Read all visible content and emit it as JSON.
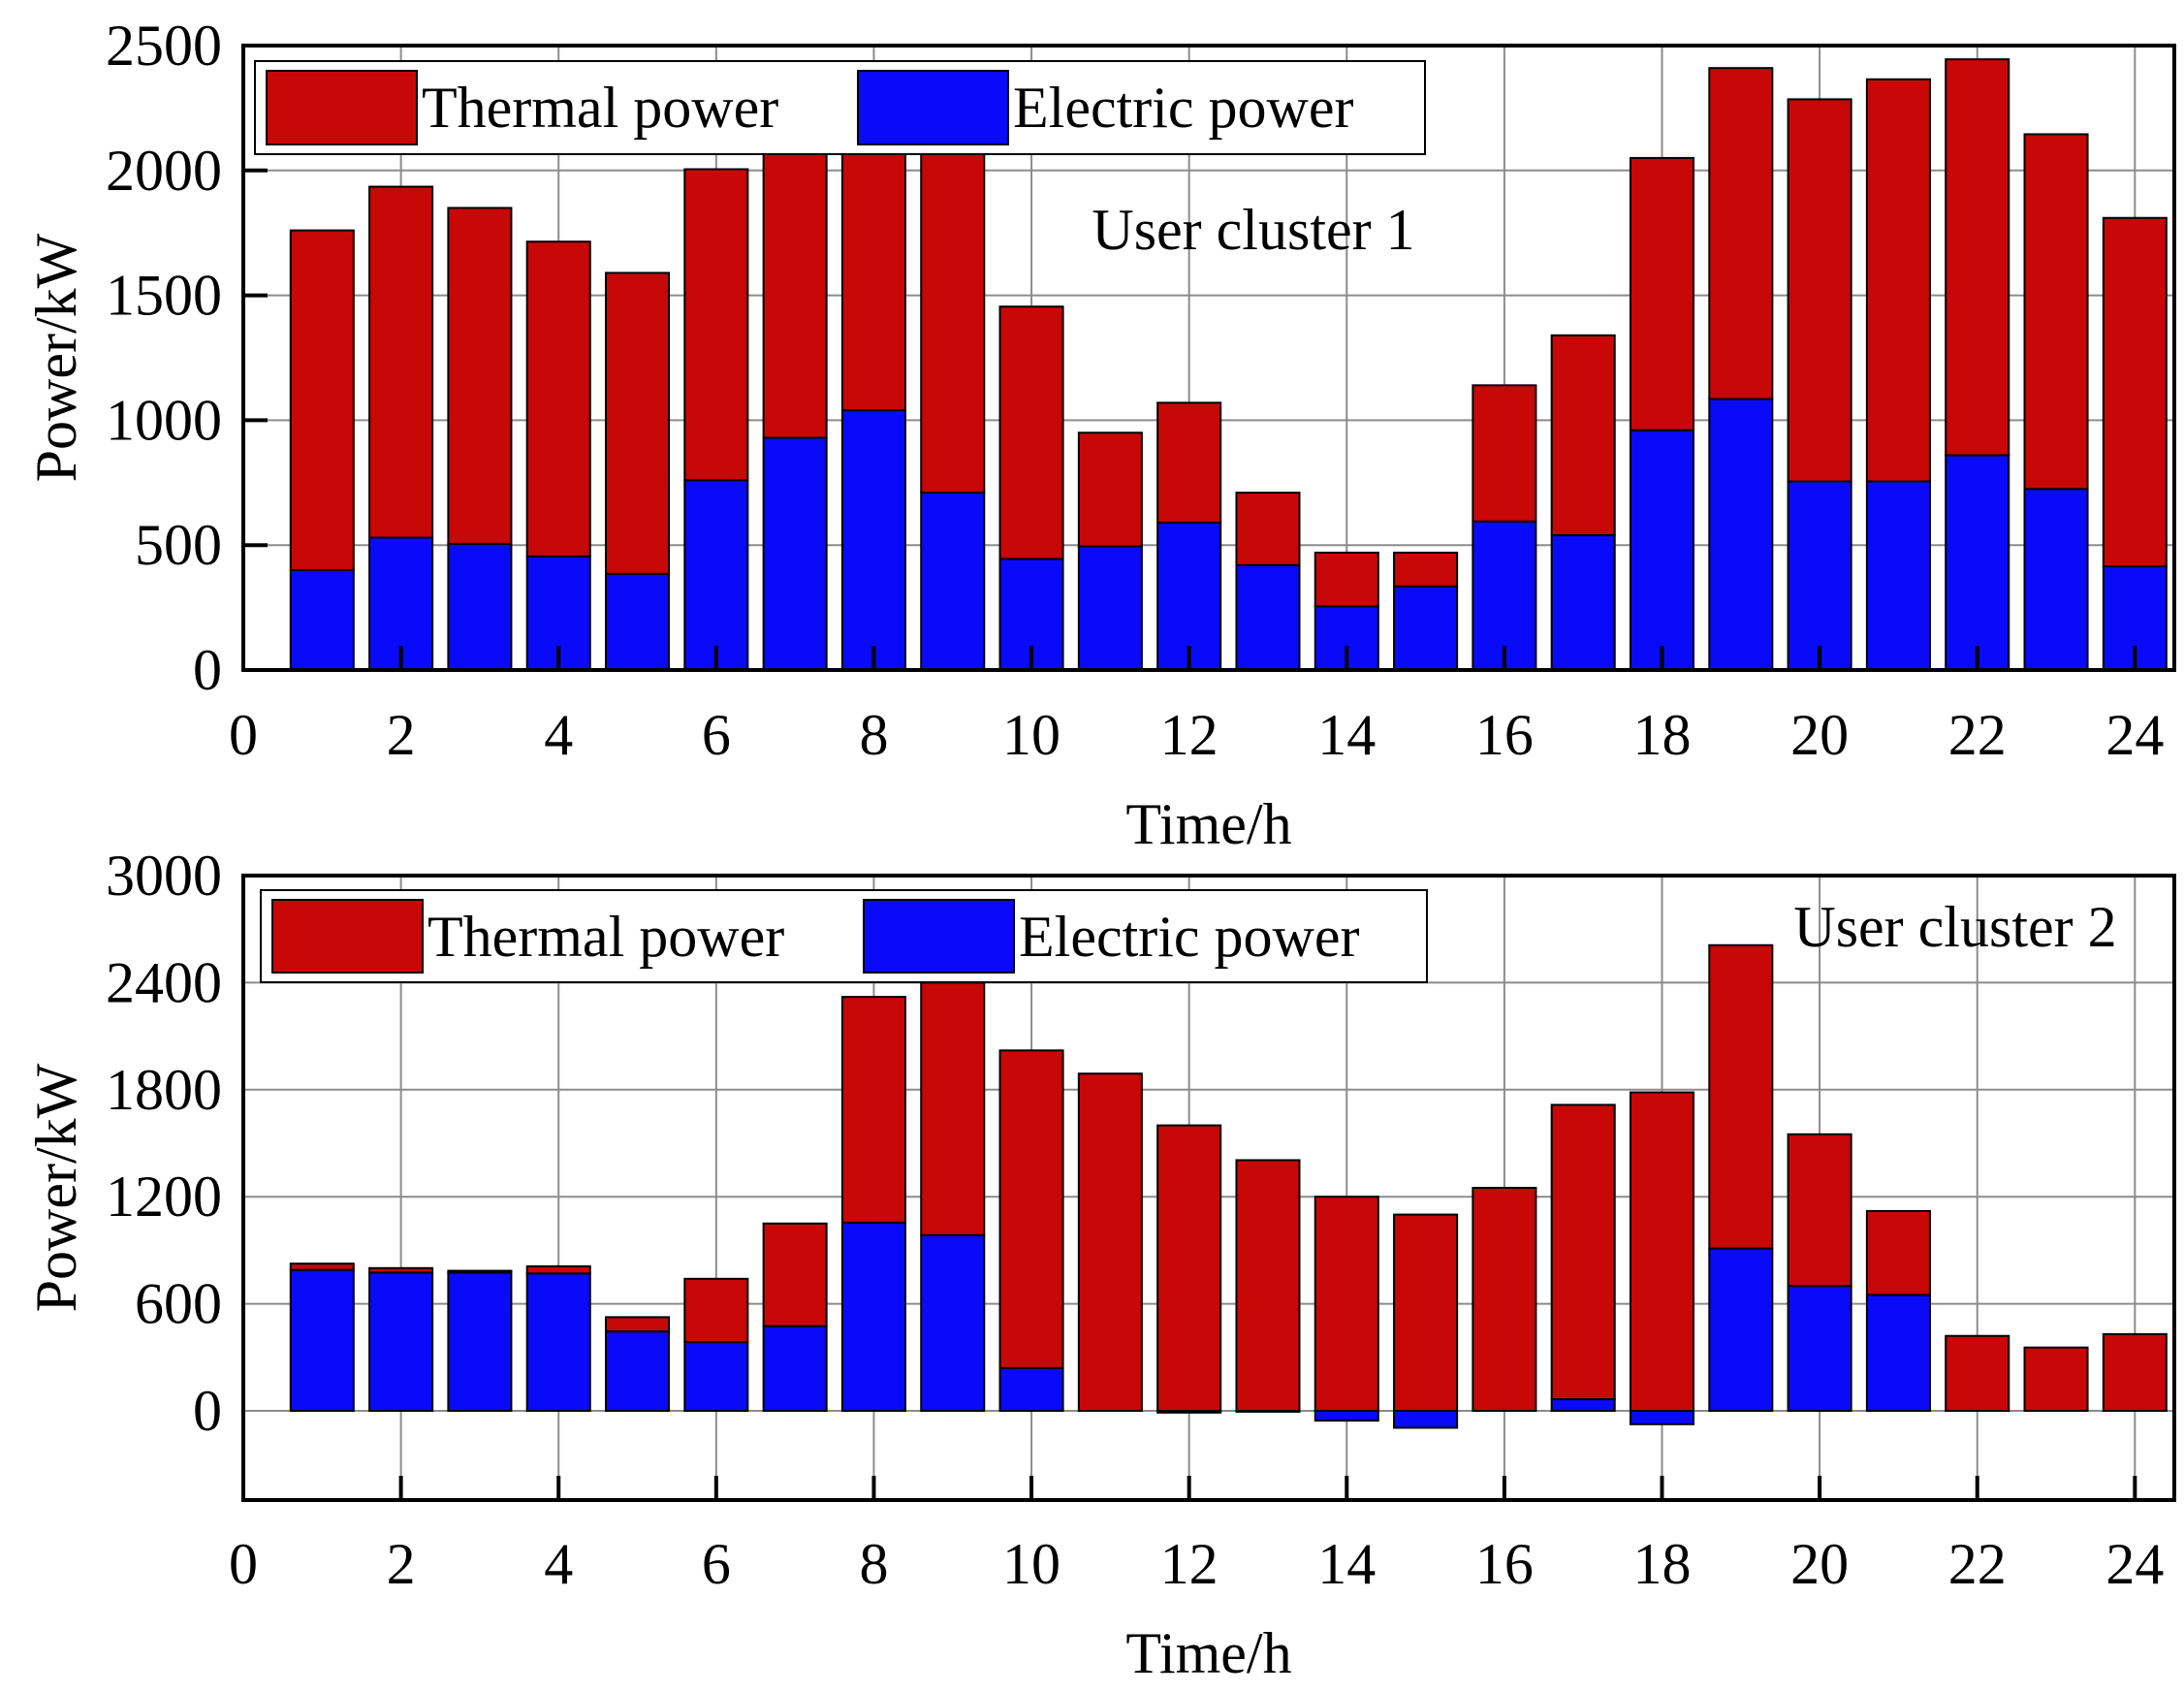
{
  "chart_data": [
    {
      "type": "bar",
      "stacked": true,
      "annotation": "User cluster 1",
      "xlabel": "Time/h",
      "ylabel": "Power/kW",
      "xlim": [
        0,
        24.5
      ],
      "ylim": [
        0,
        2500
      ],
      "xticks": [
        0,
        2,
        4,
        6,
        8,
        10,
        12,
        14,
        16,
        18,
        20,
        22,
        24
      ],
      "yticks": [
        0,
        500,
        1000,
        1500,
        2000,
        2500
      ],
      "grid": true,
      "legend": {
        "placement": "top-left",
        "entries": [
          "Thermal power",
          "Electric power"
        ]
      },
      "colors": {
        "thermal": "#c80707",
        "electric": "#0a0afa"
      },
      "categories": [
        1,
        2,
        3,
        4,
        5,
        6,
        7,
        8,
        9,
        10,
        11,
        12,
        13,
        14,
        15,
        16,
        17,
        18,
        19,
        20,
        21,
        22,
        23,
        24
      ],
      "series": [
        {
          "name": "Electric power",
          "values": [
            400,
            530,
            505,
            455,
            385,
            760,
            930,
            1040,
            710,
            445,
            495,
            590,
            420,
            255,
            335,
            595,
            540,
            960,
            1085,
            755,
            755,
            860,
            725,
            415
          ]
        },
        {
          "name": "Thermal power",
          "values": [
            1360,
            1405,
            1345,
            1260,
            1205,
            1245,
            1150,
            1030,
            1370,
            1010,
            455,
            480,
            290,
            215,
            135,
            545,
            800,
            1090,
            1325,
            1530,
            1610,
            1585,
            1420,
            1395
          ]
        }
      ]
    },
    {
      "type": "bar",
      "stacked": true,
      "annotation": "User cluster 2",
      "xlabel": "Time/h",
      "ylabel": "Power/kW",
      "xlim": [
        0,
        24.5
      ],
      "ylim": [
        -500,
        3000
      ],
      "xticks": [
        0,
        2,
        4,
        6,
        8,
        10,
        12,
        14,
        16,
        18,
        20,
        22,
        24
      ],
      "yticks": [
        0,
        600,
        1200,
        1800,
        2400,
        3000
      ],
      "grid": true,
      "legend": {
        "placement": "top-left",
        "entries": [
          "Thermal power",
          "Electric power"
        ]
      },
      "colors": {
        "thermal": "#c80707",
        "electric": "#0a0afa"
      },
      "categories": [
        1,
        2,
        3,
        4,
        5,
        6,
        7,
        8,
        9,
        10,
        11,
        12,
        13,
        14,
        15,
        16,
        17,
        18,
        19,
        20,
        21,
        22,
        23,
        24
      ],
      "series": [
        {
          "name": "Electric power",
          "values": [
            790,
            775,
            775,
            770,
            445,
            385,
            475,
            1055,
            985,
            240,
            0,
            -10,
            -5,
            -55,
            -95,
            0,
            65,
            -75,
            910,
            700,
            650,
            0,
            0,
            0
          ]
        },
        {
          "name": "Thermal power",
          "values": [
            35,
            25,
            10,
            40,
            80,
            355,
            575,
            1265,
            1415,
            1780,
            1890,
            1600,
            1405,
            1200,
            1100,
            1250,
            1650,
            1785,
            1700,
            850,
            470,
            420,
            355,
            430
          ]
        }
      ]
    }
  ]
}
